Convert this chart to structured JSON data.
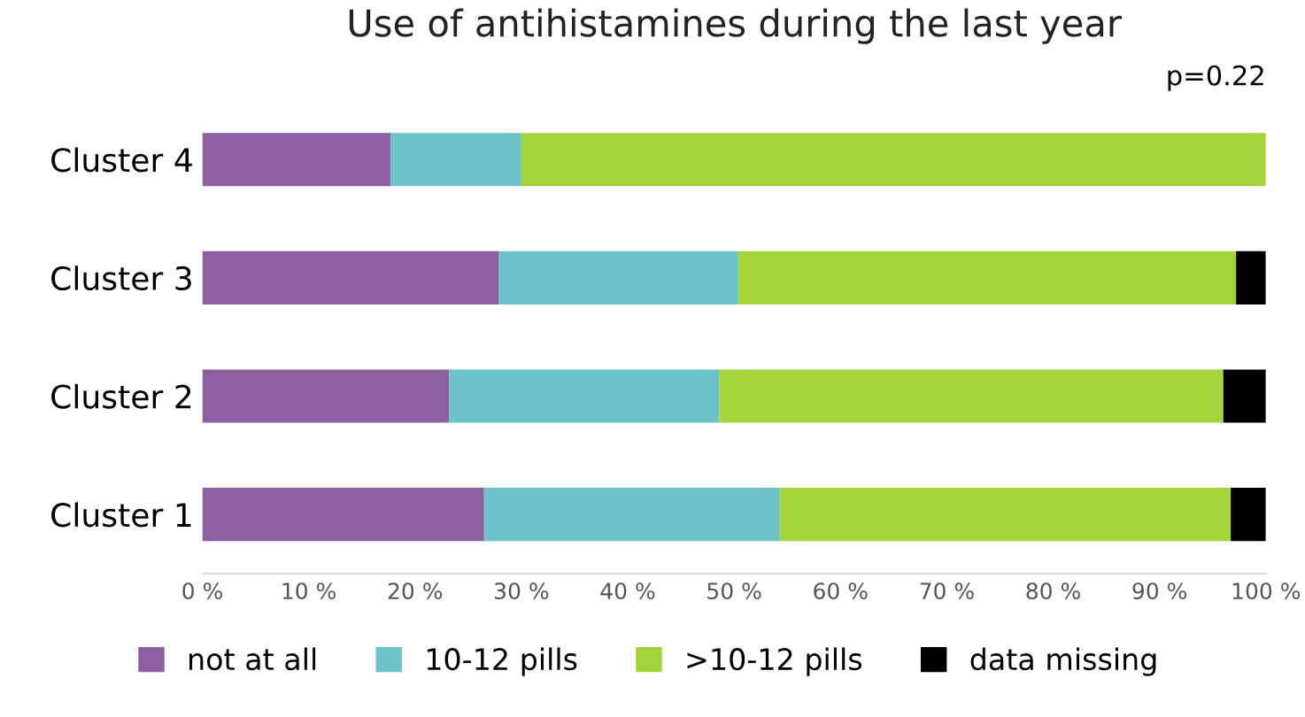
{
  "chart_data": {
    "type": "bar",
    "orientation": "horizontal",
    "stacked": true,
    "title": "Use of antihistamines during the last year",
    "categories": [
      "Cluster 4",
      "Cluster 3",
      "Cluster 2",
      "Cluster 1"
    ],
    "series": [
      {
        "name": "not at all",
        "color": "#8e5ea2",
        "values": [
          17.7,
          27.9,
          23.2,
          26.5
        ]
      },
      {
        "name": "10-12 pills",
        "color": "#6cc3c9",
        "values": [
          12.3,
          22.5,
          25.4,
          27.8
        ]
      },
      {
        "name": ">10-12 pills",
        "color": "#a4d43a",
        "values": [
          70.0,
          46.8,
          47.4,
          42.4
        ]
      },
      {
        "name": "data missing",
        "color": "#000000",
        "values": [
          0,
          2.8,
          4.0,
          3.3
        ]
      }
    ],
    "xlim": [
      0,
      100
    ],
    "xticks": [
      {
        "value": 0,
        "label": "0 %"
      },
      {
        "value": 10,
        "label": "10 %"
      },
      {
        "value": 20,
        "label": "20 %"
      },
      {
        "value": 30,
        "label": "30 %"
      },
      {
        "value": 40,
        "label": "40 %"
      },
      {
        "value": 50,
        "label": "50 %"
      },
      {
        "value": 60,
        "label": "60 %"
      },
      {
        "value": 70,
        "label": "70 %"
      },
      {
        "value": 80,
        "label": "80 %"
      },
      {
        "value": 90,
        "label": "90 %"
      },
      {
        "value": 100,
        "label": "100 %"
      }
    ],
    "annotations": [
      "p=0.22"
    ],
    "legend": "bottom",
    "grid": false
  }
}
